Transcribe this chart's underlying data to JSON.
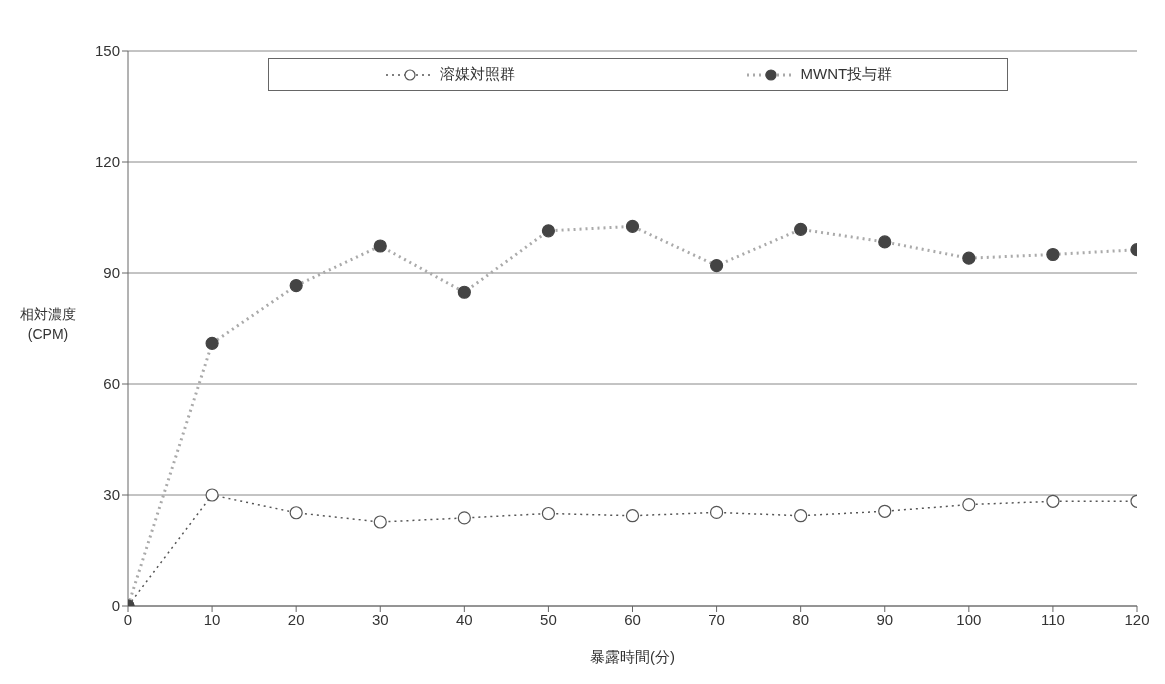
{
  "chart_data": {
    "type": "line",
    "xlabel": "暴露時間(分)",
    "ylabel": "相対濃度\n(CPM)",
    "x": [
      0,
      10,
      20,
      30,
      40,
      50,
      60,
      70,
      80,
      90,
      100,
      110,
      120
    ],
    "series": [
      {
        "name": "溶媒対照群",
        "color": "#555555",
        "line_style": "dotted",
        "values": [
          0,
          30,
          25.2,
          22.7,
          23.8,
          25,
          24.4,
          25.3,
          24.4,
          25.6,
          27.4,
          28.3,
          28.3
        ]
      },
      {
        "name": "MWNT投与群",
        "color": "#444444",
        "line_style": "dotted",
        "values": [
          0,
          71,
          86.6,
          97.3,
          84.8,
          101.4,
          102.6,
          92,
          101.8,
          98.4,
          94,
          95,
          96.3
        ]
      }
    ],
    "xlim": [
      0,
      120
    ],
    "xticks": [
      0,
      10,
      20,
      30,
      40,
      50,
      60,
      70,
      80,
      90,
      100,
      110,
      120
    ],
    "ylim": [
      0,
      150
    ],
    "yticks": [
      0,
      30,
      60,
      90,
      120,
      150
    ],
    "grid": "y",
    "legend": "top",
    "marker": "circle"
  }
}
